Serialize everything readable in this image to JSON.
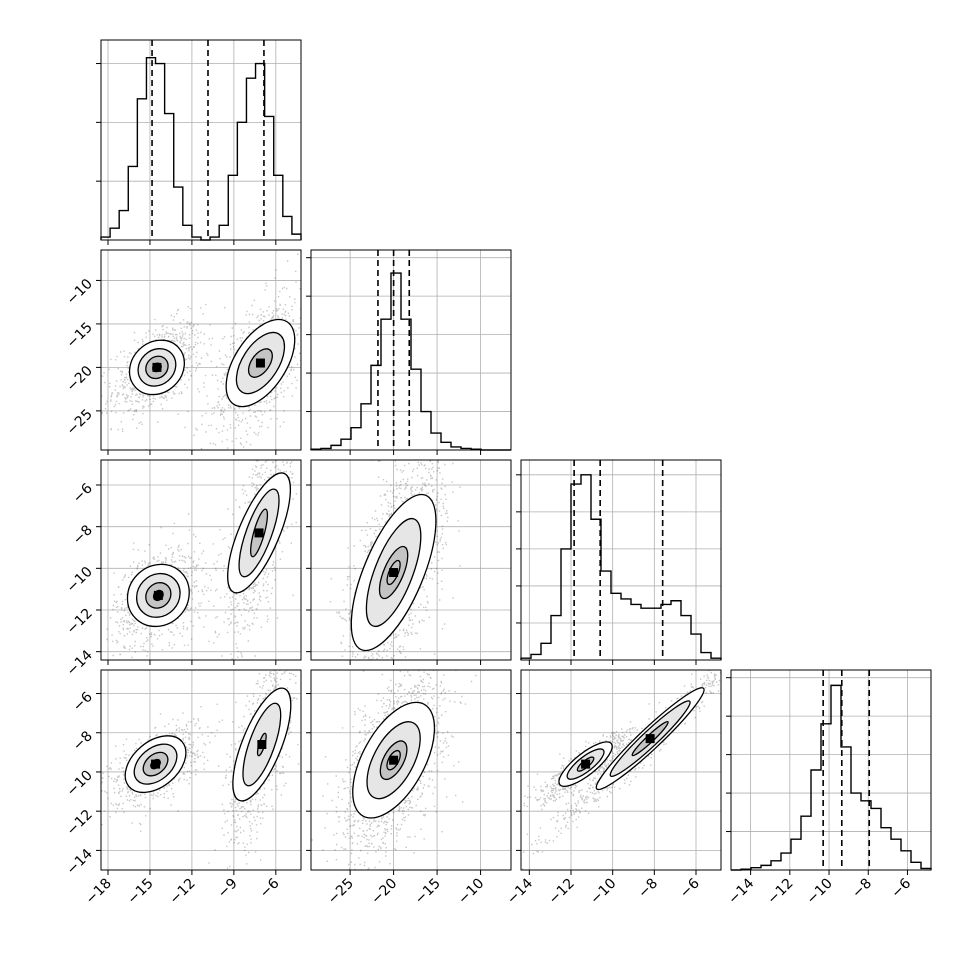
{
  "chart_data": {
    "type": "corner",
    "n_params": 4,
    "grid": true,
    "histograms": [
      {
        "param": 0,
        "range": [
          -18.5,
          -4.2
        ],
        "bins": [
          -18.5,
          -17.85,
          -17.2,
          -16.55,
          -15.9,
          -15.25,
          -14.6,
          -13.95,
          -13.3,
          -12.65,
          -12.0,
          -11.35,
          -10.7,
          -10.05,
          -9.4,
          -8.75,
          -8.1,
          -7.45,
          -6.8,
          -6.15,
          -5.5,
          -4.85,
          -4.2
        ],
        "counts": [
          1,
          4,
          10,
          25,
          48,
          62,
          60,
          43,
          18,
          5,
          1,
          0,
          1,
          5,
          22,
          40,
          55,
          60,
          42,
          22,
          8,
          2
        ],
        "ymax": 68,
        "yticks": [
          20,
          40,
          60
        ],
        "quantiles": [
          -14.85,
          -10.85,
          -6.85
        ]
      },
      {
        "param": 1,
        "range": [
          -29.5,
          -6.5
        ],
        "bins": [
          -29.5,
          -28.35,
          -27.2,
          -26.05,
          -24.9,
          -23.75,
          -22.6,
          -21.45,
          -20.3,
          -19.15,
          -18.0,
          -16.85,
          -15.7,
          -14.55,
          -13.4,
          -12.25,
          -11.1,
          -9.95,
          -8.8,
          -7.65,
          -6.5
        ],
        "counts": [
          1,
          2,
          6,
          14,
          29,
          60,
          110,
          170,
          230,
          170,
          105,
          50,
          22,
          10,
          4,
          2,
          1,
          0,
          0,
          0
        ],
        "ymax": 260,
        "yticks": [
          50,
          100,
          150,
          200,
          250
        ],
        "quantiles": [
          -21.8,
          -20.0,
          -18.2
        ]
      },
      {
        "param": 2,
        "range": [
          -14.4,
          -4.8
        ],
        "bins": [
          -14.4,
          -13.92,
          -13.44,
          -12.96,
          -12.48,
          -12.0,
          -11.52,
          -11.04,
          -10.56,
          -10.08,
          -9.6,
          -9.12,
          -8.64,
          -8.16,
          -7.68,
          -7.2,
          -6.72,
          -6.24,
          -5.76,
          -5.28,
          -4.8
        ],
        "counts": [
          1,
          3,
          9,
          24,
          60,
          95,
          100,
          76,
          48,
          36,
          33,
          30,
          28,
          28,
          30,
          32,
          24,
          14,
          4,
          1
        ],
        "ymax": 108,
        "yticks": [
          20,
          40,
          60,
          80,
          100
        ],
        "quantiles": [
          -11.85,
          -10.6,
          -7.6
        ]
      },
      {
        "param": 3,
        "range": [
          -15.0,
          -4.8
        ],
        "bins": [
          -15.0,
          -14.49,
          -13.98,
          -13.47,
          -12.96,
          -12.45,
          -11.94,
          -11.43,
          -10.92,
          -10.41,
          -9.9,
          -9.39,
          -8.88,
          -8.37,
          -7.86,
          -7.35,
          -6.84,
          -6.33,
          -5.82,
          -5.31,
          -4.8
        ],
        "counts": [
          0,
          1,
          3,
          6,
          12,
          22,
          40,
          70,
          130,
          190,
          240,
          160,
          100,
          90,
          80,
          55,
          40,
          25,
          10,
          2
        ],
        "ymax": 260,
        "yticks": [
          50,
          100,
          150,
          200,
          250
        ],
        "quantiles": [
          -10.3,
          -9.35,
          -7.95
        ]
      }
    ],
    "axes": [
      {
        "param": 0,
        "range": [
          -18.5,
          -4.2
        ],
        "ticks": [
          -18,
          -15,
          -12,
          -9,
          -6
        ],
        "tick_labels": [
          "−18",
          "−15",
          "−12",
          "−9",
          "−6"
        ]
      },
      {
        "param": 1,
        "range": [
          -29.5,
          -6.5
        ],
        "ticks": [
          -25,
          -20,
          -15,
          -10
        ],
        "tick_labels": [
          "−25",
          "−20",
          "−15",
          "−10"
        ]
      },
      {
        "param": 2,
        "range": [
          -14.4,
          -4.8
        ],
        "ticks": [
          -14,
          -12,
          -10,
          -8,
          -6
        ],
        "tick_labels": [
          "−14",
          "−12",
          "−10",
          "−8",
          "−6"
        ]
      },
      {
        "param": 3,
        "range": [
          -15.0,
          -4.8
        ],
        "ticks": [
          -14,
          -12,
          -10,
          -8,
          -6
        ],
        "tick_labels": [
          "−14",
          "−12",
          "−10",
          "−8",
          "−6"
        ]
      }
    ],
    "pairs": [
      {
        "x": 0,
        "y": 1,
        "modes": [
          {
            "mean": [
              -14.5,
              -20.0
            ],
            "sd": [
              1.1,
              1.8
            ],
            "rho": 0.5,
            "weight": 0.5,
            "contours": [
              [
                1.9,
                2.9
              ],
              [
                1.3,
                2.0
              ],
              [
                0.75,
                1.2
              ],
              [
                0.3,
                0.45
              ]
            ]
          },
          {
            "mean": [
              -7.1,
              -19.5
            ],
            "sd": [
              1.2,
              3.0
            ],
            "rho": 0.6,
            "weight": 0.5,
            "contours": [
              [
                2.0,
                5.0
              ],
              [
                1.4,
                3.5
              ],
              [
                0.7,
                1.6
              ]
            ]
          }
        ]
      },
      {
        "x": 0,
        "y": 2,
        "modes": [
          {
            "mean": [
              -14.4,
              -11.3
            ],
            "sd": [
              1.1,
              0.85
            ],
            "rho": 0.4,
            "weight": 0.5,
            "contours": [
              [
                2.0,
                1.4
              ],
              [
                1.4,
                1.0
              ],
              [
                0.8,
                0.6
              ],
              [
                0.3,
                0.25
              ]
            ]
          },
          {
            "mean": [
              -7.2,
              -8.3
            ],
            "sd": [
              1.0,
              2.0
            ],
            "rho": 0.75,
            "weight": 0.5,
            "contours": [
              [
                1.9,
                3.0
              ],
              [
                1.2,
                2.2
              ],
              [
                0.5,
                1.2
              ]
            ]
          }
        ]
      },
      {
        "x": 1,
        "y": 2,
        "modes": [
          {
            "mean": [
              -20.0,
              -10.2
            ],
            "sd": [
              2.0,
              2.2
            ],
            "rho": 0.65,
            "weight": 1.0,
            "contours": [
              [
                3.9,
                3.9
              ],
              [
                2.5,
                2.7
              ],
              [
                1.3,
                1.3
              ],
              [
                0.6,
                0.6
              ]
            ]
          }
        ]
      },
      {
        "x": 0,
        "y": 3,
        "modes": [
          {
            "mean": [
              -14.6,
              -9.6
            ],
            "sd": [
              1.1,
              0.7
            ],
            "rho": 0.55,
            "weight": 0.5,
            "contours": [
              [
                2.0,
                1.2
              ],
              [
                1.4,
                0.85
              ],
              [
                0.8,
                0.5
              ],
              [
                0.3,
                0.2
              ]
            ]
          },
          {
            "mean": [
              -7.0,
              -8.6
            ],
            "sd": [
              0.9,
              1.9
            ],
            "rho": 0.7,
            "weight": 0.5,
            "contours": [
              [
                1.7,
                3.0
              ],
              [
                1.1,
                2.2
              ],
              [
                0.25,
                0.6
              ]
            ]
          }
        ]
      },
      {
        "x": 1,
        "y": 3,
        "modes": [
          {
            "mean": [
              -20.0,
              -9.4
            ],
            "sd": [
              2.0,
              1.6
            ],
            "rho": 0.55,
            "weight": 1.0,
            "contours": [
              [
                3.7,
                3.0
              ],
              [
                2.4,
                2.0
              ],
              [
                1.2,
                1.0
              ],
              [
                0.6,
                0.5
              ]
            ]
          }
        ]
      },
      {
        "x": 2,
        "y": 3,
        "modes": [
          {
            "mean": [
              -11.3,
              -9.6
            ],
            "sd": [
              0.75,
              0.6
            ],
            "rho": 0.9,
            "weight": 0.5,
            "contours": [
              [
                1.3,
                1.1
              ],
              [
                0.9,
                0.75
              ],
              [
                0.4,
                0.35
              ]
            ]
          },
          {
            "mean": [
              -8.2,
              -8.3
            ],
            "sd": [
              1.7,
              1.7
            ],
            "rho": 0.985,
            "weight": 0.5,
            "contours": [
              [
                2.7,
                2.7
              ],
              [
                2.0,
                2.0
              ],
              [
                0.9,
                0.9
              ]
            ]
          }
        ]
      }
    ]
  }
}
